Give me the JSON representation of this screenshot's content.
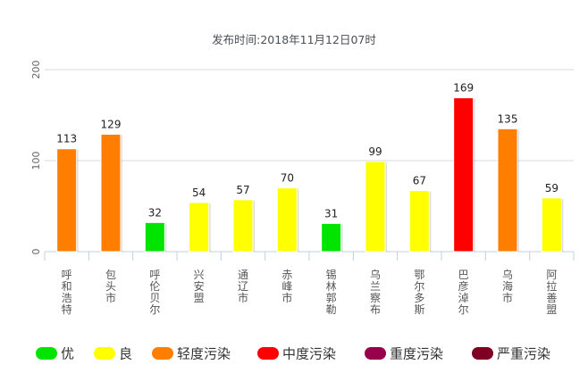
{
  "chart_data": {
    "type": "bar",
    "subtitle": "发布时间:2018年11月12日07时",
    "ylim": [
      0,
      200
    ],
    "yticks": [
      "0",
      "100",
      "200"
    ],
    "categories": [
      "呼和浩特市",
      "包头市",
      "呼伦贝尔市",
      "兴安盟",
      "通辽市",
      "赤峰市",
      "锡林郭勒盟",
      "乌兰察布市",
      "鄂尔多斯市",
      "巴彦淖尔市",
      "乌海市",
      "阿拉善盟"
    ],
    "values": [
      113,
      129,
      32,
      54,
      57,
      70,
      31,
      99,
      67,
      169,
      135,
      59
    ],
    "bar_levels": [
      "轻度污染",
      "轻度污染",
      "优",
      "良",
      "良",
      "良",
      "优",
      "良",
      "良",
      "中度污染",
      "轻度污染",
      "良"
    ],
    "legend": [
      {
        "label": "优",
        "color": "#00e400"
      },
      {
        "label": "良",
        "color": "#ffff00"
      },
      {
        "label": "轻度污染",
        "color": "#ff7e00"
      },
      {
        "label": "中度污染",
        "color": "#ff0000"
      },
      {
        "label": "重度污染",
        "color": "#99004c"
      },
      {
        "label": "严重污染",
        "color": "#7e0023"
      }
    ],
    "grid": true,
    "legend_position": "bottom"
  }
}
